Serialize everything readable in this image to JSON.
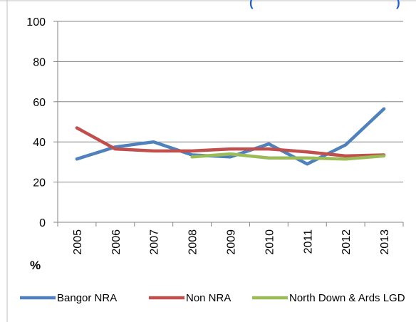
{
  "chart_data": {
    "type": "line",
    "title_fragments": [
      "(",
      ")"
    ],
    "categories": [
      "2005",
      "2006",
      "2007",
      "2008",
      "2009",
      "2010",
      "2011",
      "2012",
      "2013"
    ],
    "ylabel": "%",
    "ylim": [
      0,
      100
    ],
    "yticks": [
      "0",
      "20",
      "40",
      "60",
      "80",
      "100"
    ],
    "grid": "horizontal",
    "legend": "bottom",
    "series": [
      {
        "name": "Bangor NRA",
        "color": "#4f81bd",
        "values": [
          31.5,
          37.5,
          40,
          33.5,
          32.5,
          39,
          29,
          38.5,
          56.5
        ]
      },
      {
        "name": "Non NRA",
        "color": "#c0504d",
        "values": [
          47,
          36.5,
          35.5,
          35.5,
          36.5,
          36.5,
          35,
          33,
          33.5
        ]
      },
      {
        "name": "North Down & Ards LGD",
        "color": "#9bbb59",
        "values": [
          null,
          null,
          null,
          32.5,
          34,
          32,
          32,
          31.5,
          33
        ]
      }
    ]
  }
}
